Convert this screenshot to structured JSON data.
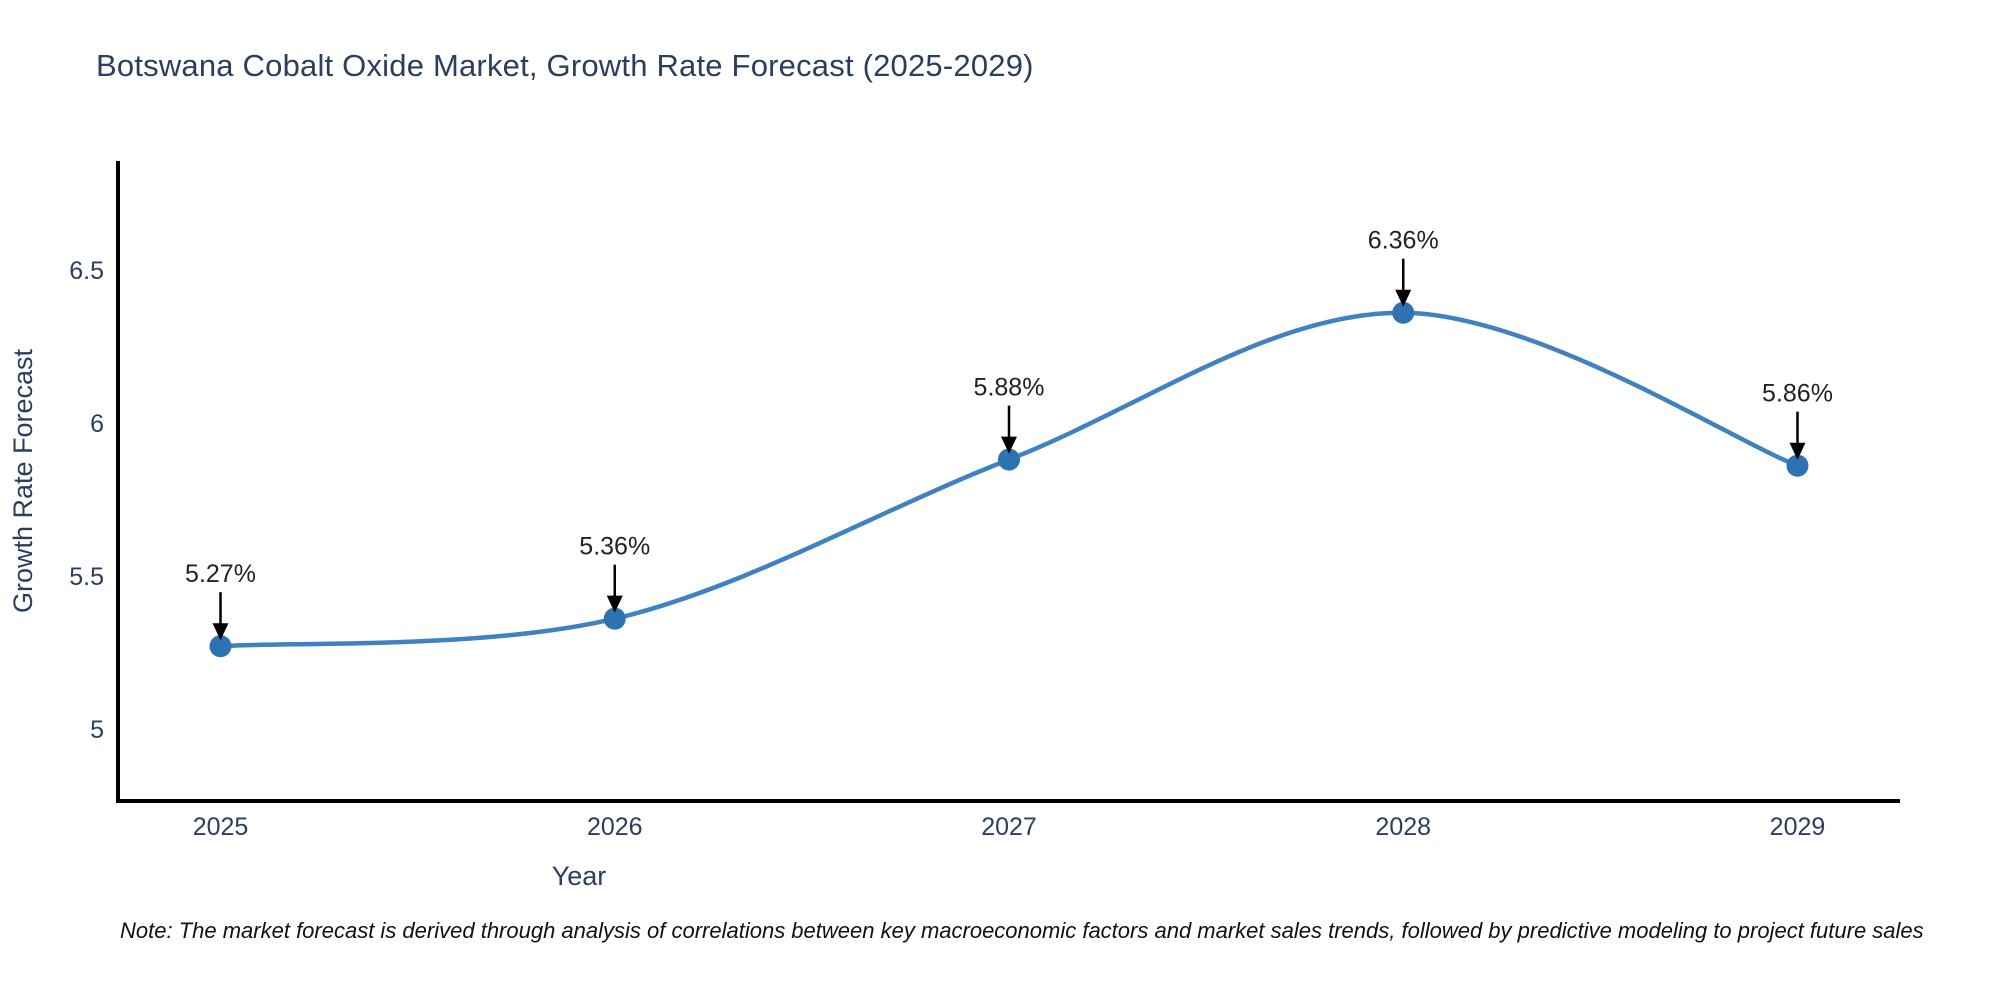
{
  "title": "Botswana Cobalt Oxide Market, Growth Rate Forecast (2025-2029)",
  "note": "Note: The market forecast is derived through analysis of correlations between key macroeconomic factors and market sales trends, followed by predictive modeling to project future sales",
  "colors": {
    "line": "#3f81c1",
    "marker": "#2e72b0",
    "title_text": "#2a3f5f",
    "tick_text": "#2a3f5f",
    "axis_line": "#000000",
    "annotation_text": "#222222",
    "annotation_arrow": "#000000",
    "background": "#ffffff"
  },
  "chart_data": {
    "type": "line",
    "line_shape": "spline",
    "title": "Botswana Cobalt Oxide Market, Growth Rate Forecast (2025-2029)",
    "xlabel": "Year",
    "ylabel": "Growth Rate Forecast",
    "x": [
      2025,
      2026,
      2027,
      2028,
      2029
    ],
    "values": [
      5.27,
      5.36,
      5.88,
      6.36,
      5.86
    ],
    "point_labels": [
      "5.27%",
      "5.36%",
      "5.88%",
      "6.36%",
      "5.86%"
    ],
    "x_tick_labels": [
      "2025",
      "2026",
      "2027",
      "2028",
      "2029"
    ],
    "y_tick_values": [
      5,
      5.5,
      6,
      6.5
    ],
    "y_tick_labels": [
      "5",
      "5.5",
      "6",
      "6.5"
    ],
    "xlim": [
      2024.74,
      2029.26
    ],
    "ylim": [
      4.764,
      6.856
    ],
    "grid": false,
    "legend": "none"
  }
}
